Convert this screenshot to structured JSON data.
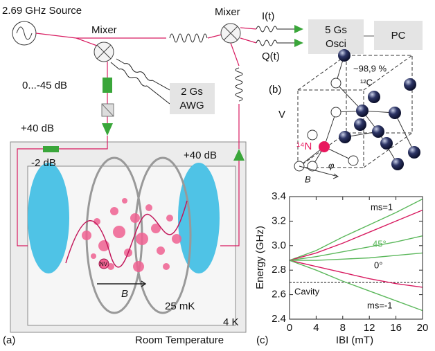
{
  "diagram": {
    "source": "2.69 GHz Source",
    "mixer_left": "Mixer",
    "mixer_right": "Mixer",
    "i_signal": "I(t)",
    "q_signal": "Q(t)",
    "oscilloscope": [
      "5 Gs",
      "Osci"
    ],
    "pc": "PC",
    "attenuator": "0...-45 dB",
    "awg": [
      "2 Gs",
      "AWG"
    ],
    "amp_left": "+40 dB",
    "amp_right": "+40 dB",
    "attenuator_cold": "-2 dB",
    "nv": "NV",
    "field": "B",
    "mk_stage": "25 mK",
    "k_stage": "4 K",
    "panel_a": "(a)",
    "room_temperature": "Room Temperature"
  },
  "lattice": {
    "panel": "(b)",
    "abundance": "~98,9 %",
    "carbon": "¹²C",
    "vacancy": "V",
    "nitrogen": "¹⁴N",
    "field": "B",
    "angle": "φ"
  },
  "chart_data": {
    "type": "line",
    "panel": "(c)",
    "y_label": "Energy (GHz)",
    "x_label": "IBI (mT)",
    "x": [
      0,
      4,
      8,
      12,
      16,
      20
    ],
    "series": [
      {
        "color": "#5cb85c",
        "values": [
          2.88,
          2.96,
          3.07,
          3.17,
          3.27,
          3.38
        ]
      },
      {
        "color": "#d81b60",
        "values": [
          2.88,
          2.94,
          3.02,
          3.11,
          3.2,
          3.29
        ]
      },
      {
        "color": "#5cb85c",
        "values": [
          2.88,
          2.91,
          2.95,
          2.99,
          3.03,
          3.08
        ]
      },
      {
        "color": "#5cb85c",
        "values": [
          2.88,
          2.88,
          2.89,
          2.9,
          2.92,
          2.94
        ]
      },
      {
        "color": "#d81b60",
        "values": [
          2.88,
          2.83,
          2.78,
          2.73,
          2.69,
          2.66
        ]
      },
      {
        "color": "#5cb85c",
        "values": [
          2.88,
          2.8,
          2.71,
          2.63,
          2.55,
          2.47
        ]
      }
    ],
    "cavity_level": 2.7,
    "annotations": [
      "ms=1",
      "45°",
      "0°",
      "Cavity",
      "ms=-1"
    ],
    "xlim": [
      0,
      20
    ],
    "xticks": [
      0,
      4,
      8,
      12,
      16,
      20
    ],
    "ylim": [
      2.4,
      3.4
    ],
    "yticks": [
      2.4,
      2.6,
      2.8,
      {
        "value": 3,
        "label": "3.0"
      },
      3.2,
      3.4
    ]
  }
}
